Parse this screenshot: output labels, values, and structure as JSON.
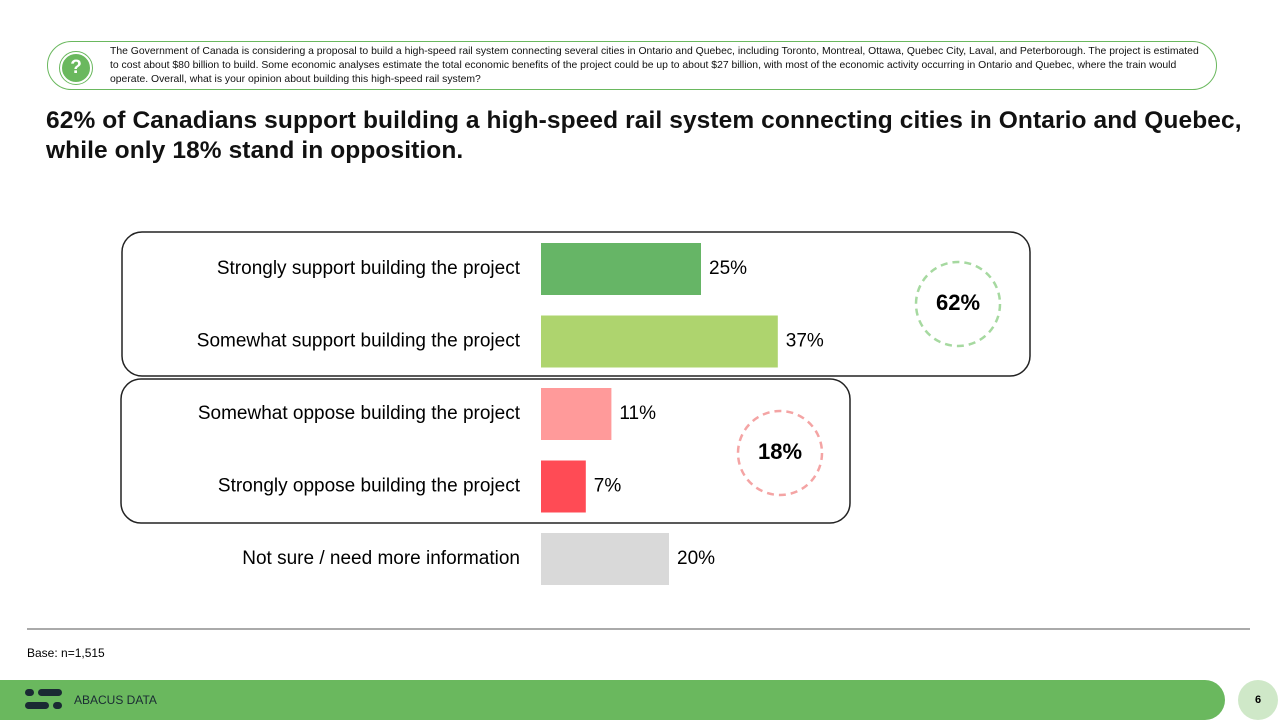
{
  "question": "The Government of Canada is considering a proposal to build a high-speed rail system connecting several cities in Ontario and Quebec, including Toronto, Montreal, Ottawa, Quebec City, Laval, and Peterborough. The project is estimated to cost about $80 billion to build. Some economic analyses estimate the total economic benefits of the project could be up to about $27 billion, with most of the economic activity occurring in Ontario and Quebec, where the train would operate. Overall, what is your opinion about building this high-speed rail system?",
  "chart_data": {
    "type": "bar",
    "orientation": "horizontal",
    "title": "62% of Canadians support building a high-speed rail system connecting cities in Ontario and Quebec, while only 18% stand in opposition.",
    "categories": [
      "Strongly support building the project",
      "Somewhat support building the project",
      "Somewhat oppose building the project",
      "Strongly oppose building the project",
      "Not sure / need more information"
    ],
    "values": [
      25,
      37,
      11,
      7,
      20
    ],
    "value_labels": [
      "25%",
      "37%",
      "11%",
      "7%",
      "20%"
    ],
    "colors": [
      "#66b566",
      "#aed46e",
      "#ff9a9a",
      "#ff4b55",
      "#d9d9d9"
    ],
    "group_totals": [
      {
        "value": 62,
        "label": "62%"
      },
      {
        "value": 18,
        "label": "18%"
      }
    ]
  },
  "base": "Base: n=1,515",
  "footer": "ABACUS DATA",
  "page_number": "6"
}
